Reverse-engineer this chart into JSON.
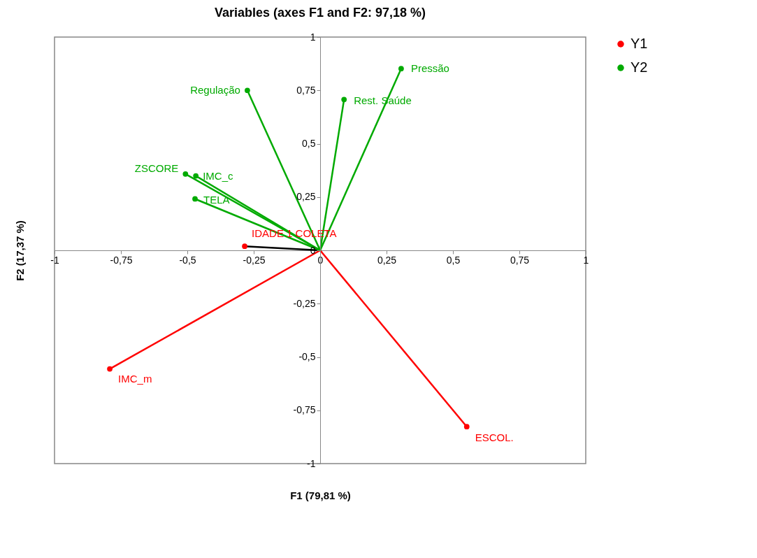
{
  "chart_data": {
    "type": "scatter",
    "title": "Variables (axes F1 and F2: 97,18 %)",
    "xlabel": "F1 (79,81 %)",
    "ylabel": "F2 (17,37 %)",
    "series": [
      {
        "type": "line",
        "marker": "none",
        "color": "#000000",
        "x": [
          0,
          -0.284
        ],
        "values": [
          0,
          0.019
        ]
      },
      {
        "type": "line",
        "marker": "none",
        "color": "#ff0000",
        "x": [
          0,
          -0.792
        ],
        "values": [
          0,
          -0.556
        ]
      },
      {
        "type": "line",
        "marker": "none",
        "color": "#ff0000",
        "x": [
          0,
          0.552
        ],
        "values": [
          0,
          -0.827
        ]
      },
      {
        "type": "line",
        "marker": "none",
        "color": "#00aa00",
        "x": [
          0,
          0.305
        ],
        "values": [
          0,
          0.852
        ]
      },
      {
        "type": "line",
        "marker": "none",
        "color": "#00aa00",
        "x": [
          0,
          0.09
        ],
        "values": [
          0,
          0.707
        ]
      },
      {
        "type": "line",
        "marker": "none",
        "color": "#00aa00",
        "x": [
          0,
          -0.274
        ],
        "values": [
          0,
          0.75
        ]
      },
      {
        "type": "line",
        "marker": "none",
        "color": "#00aa00",
        "x": [
          0,
          -0.507
        ],
        "values": [
          0,
          0.358
        ]
      },
      {
        "type": "line",
        "marker": "none",
        "color": "#00aa00",
        "x": [
          0,
          -0.468
        ],
        "values": [
          0,
          0.349
        ]
      },
      {
        "type": "line",
        "marker": "none",
        "color": "#00aa00",
        "x": [
          0,
          -0.471
        ],
        "values": [
          0,
          0.241
        ]
      },
      {
        "type": "scatter",
        "name": "Y1",
        "color": "#ff0000",
        "x": [
          -0.284,
          -0.792,
          0.552
        ],
        "values": [
          0.019,
          -0.556,
          -0.827
        ]
      },
      {
        "type": "scatter",
        "name": "Y2",
        "color": "#00aa00",
        "x": [
          0.305,
          0.09,
          -0.274,
          -0.507,
          -0.468,
          -0.471
        ],
        "values": [
          0.852,
          0.707,
          0.75,
          0.358,
          0.349,
          0.241
        ]
      }
    ],
    "annotations": [
      {
        "text": "IDADE 1 COLETA",
        "x": -0.284,
        "y": 0.019
      },
      {
        "text": "IMC_m",
        "x": -0.792,
        "y": -0.556
      },
      {
        "text": "ESCOL.",
        "x": 0.552,
        "y": -0.827
      },
      {
        "text": "Pressão",
        "x": 0.305,
        "y": 0.852
      },
      {
        "text": "Rest. Saúde",
        "x": 0.09,
        "y": 0.707
      },
      {
        "text": "Regulação",
        "x": -0.274,
        "y": 0.75
      },
      {
        "text": "ZSCORE",
        "x": -0.507,
        "y": 0.358
      },
      {
        "text": "IMC_c",
        "x": -0.468,
        "y": 0.349
      },
      {
        "text": "TELA",
        "x": -0.471,
        "y": 0.241
      }
    ],
    "xlim": [
      -1,
      1
    ],
    "ylim": [
      -1,
      1
    ],
    "xticks": [
      -1,
      {
        "value": -0.75,
        "label": "-0,75"
      },
      {
        "value": -0.5,
        "label": "-0,5"
      },
      {
        "value": -0.25,
        "label": "-0,25"
      },
      0,
      {
        "value": 0.25,
        "label": "0,25"
      },
      {
        "value": 0.5,
        "label": "0,5"
      },
      {
        "value": 0.75,
        "label": "0,75"
      },
      1
    ],
    "yticks": [
      -1,
      {
        "value": -0.75,
        "label": "-0,75"
      },
      {
        "value": -0.5,
        "label": "-0,5"
      },
      {
        "value": -0.25,
        "label": "-0,25"
      },
      0,
      {
        "value": 0.25,
        "label": "0,25"
      },
      {
        "value": 0.5,
        "label": "0,5"
      },
      {
        "value": 0.75,
        "label": "0,75"
      },
      1
    ],
    "grid": false,
    "legend": "right",
    "marker": "circle",
    "line_style": "solid"
  }
}
